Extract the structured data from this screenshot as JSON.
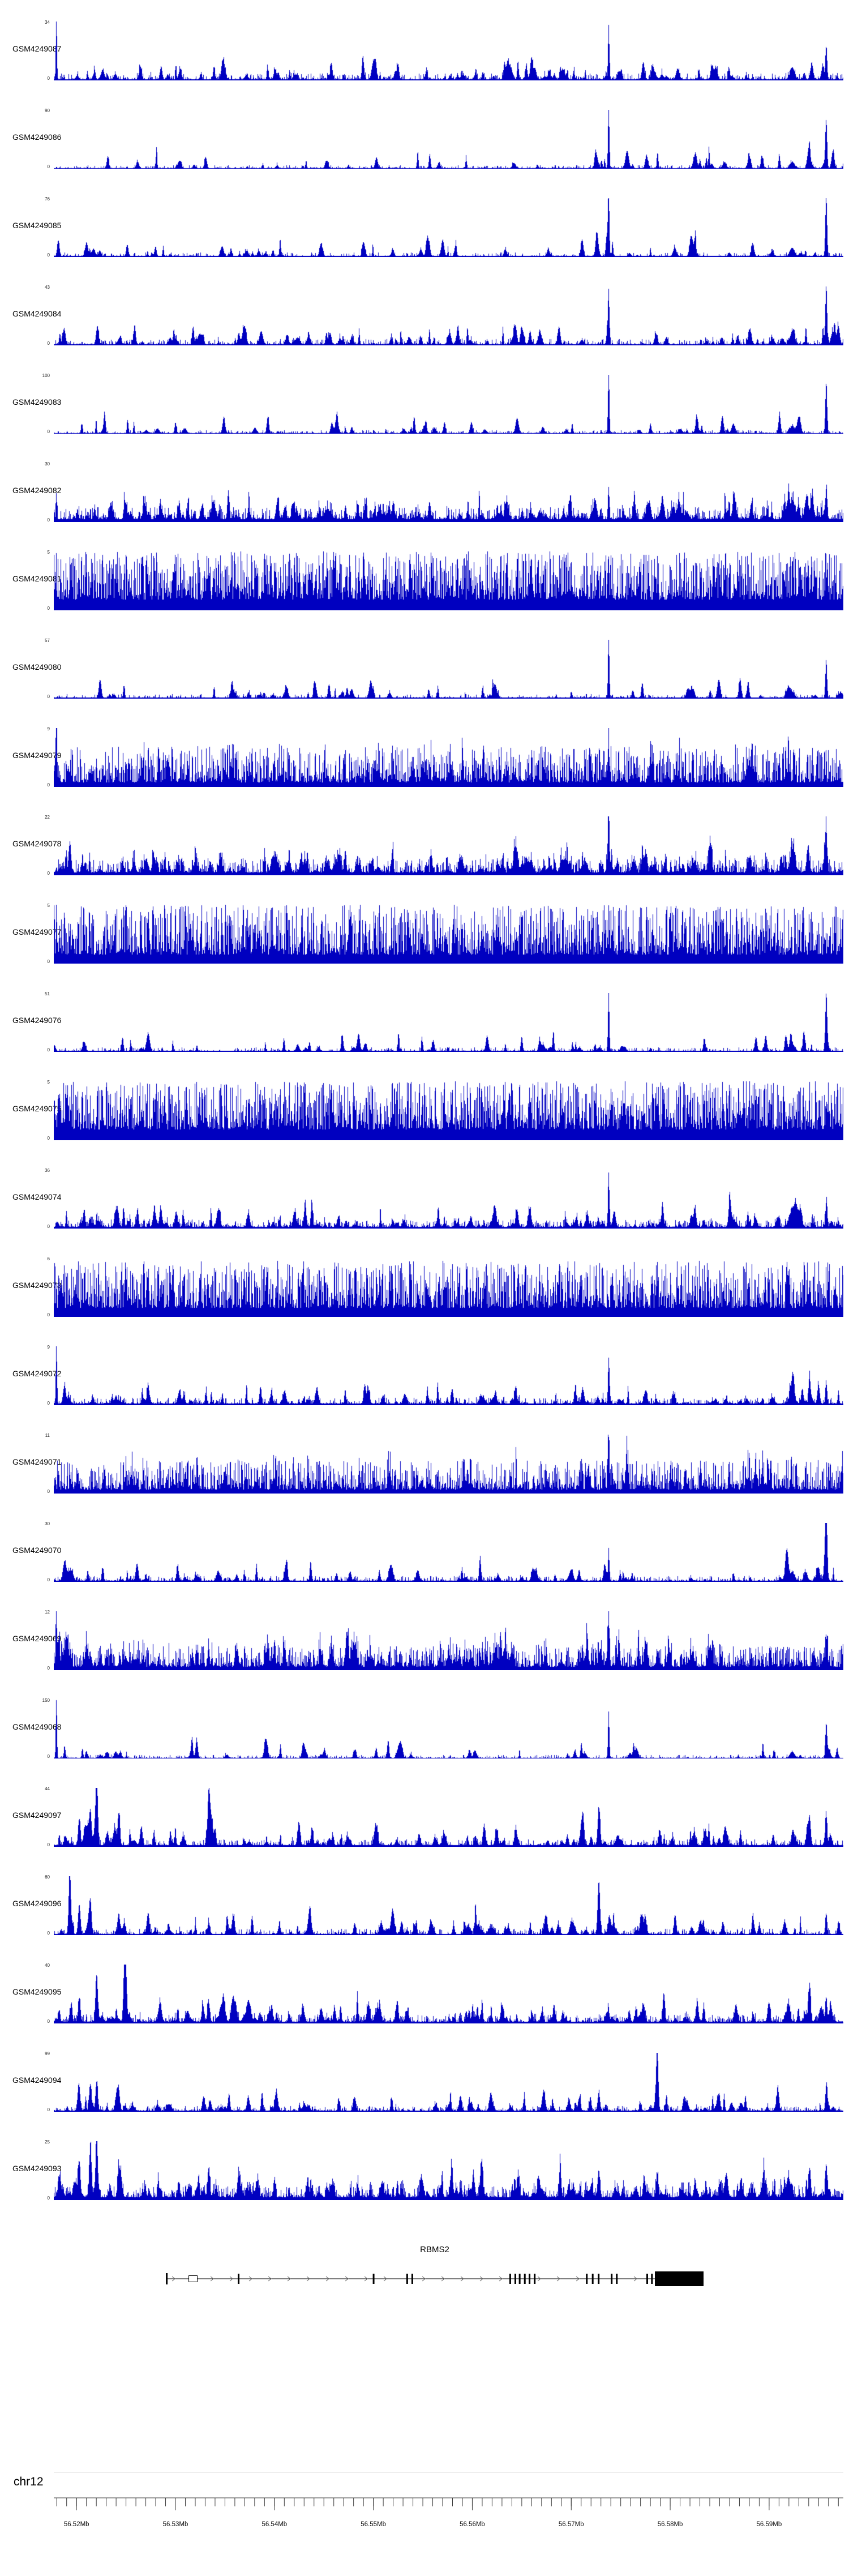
{
  "chromosome_label": "chr12",
  "colors": {
    "signal": "#0000c0",
    "gene": "#000000",
    "axis": "#3a3a3a",
    "separator": "#c9c9c9",
    "background": "#ffffff"
  },
  "chart_data": {
    "type": "area",
    "title": "",
    "description": "Stacked genome-browser coverage tracks (blue filled histograms) over chr12 with RBMS2 gene model and genomic axis",
    "chromosome": "chr12",
    "grid": false,
    "legend": "none",
    "x_axis": {
      "range_mb": [
        56.5177,
        56.5975
      ],
      "major_tick_interval_mb": 0.01,
      "minor_tick_interval_mb": 0.001,
      "tick_labels": [
        "56.52Mb",
        "56.53Mb",
        "56.54Mb",
        "56.55Mb",
        "56.56Mb",
        "56.57Mb",
        "56.58Mb",
        "56.59Mb"
      ]
    },
    "gene_track": {
      "gene_name": "RBMS2",
      "strand": "+",
      "span_frac": [
        0.142,
        0.823
      ],
      "exons": [
        {
          "x": 0.142,
          "w": 3,
          "h": 20
        },
        {
          "x": 0.171,
          "w": 15,
          "h": 11,
          "hollow": true
        },
        {
          "x": 0.233,
          "w": 3,
          "h": 18
        },
        {
          "x": 0.404,
          "w": 3,
          "h": 18
        },
        {
          "x": 0.4465,
          "w": 3,
          "h": 18
        },
        {
          "x": 0.453,
          "w": 3,
          "h": 18
        },
        {
          "x": 0.577,
          "w": 3,
          "h": 18
        },
        {
          "x": 0.5835,
          "w": 3,
          "h": 18
        },
        {
          "x": 0.589,
          "w": 3,
          "h": 18
        },
        {
          "x": 0.5955,
          "w": 3,
          "h": 18
        },
        {
          "x": 0.6015,
          "w": 3,
          "h": 18
        },
        {
          "x": 0.608,
          "w": 3,
          "h": 18
        },
        {
          "x": 0.674,
          "w": 3,
          "h": 18
        },
        {
          "x": 0.6815,
          "w": 3,
          "h": 18
        },
        {
          "x": 0.689,
          "w": 3,
          "h": 18
        },
        {
          "x": 0.7055,
          "w": 3,
          "h": 18
        },
        {
          "x": 0.712,
          "w": 3,
          "h": 18
        },
        {
          "x": 0.7505,
          "w": 3,
          "h": 18
        },
        {
          "x": 0.7565,
          "w": 3,
          "h": 18
        },
        {
          "x": 0.7613,
          "w": 86,
          "h": 26,
          "end_box": true
        }
      ]
    },
    "peaks_format": "[x_fraction_of_plot_width, height_fraction_of_ymax, gaussian_width_fraction]",
    "tracks": [
      {
        "label": "GSM4249087",
        "ymax": 34,
        "ymin": 0,
        "profile": {
          "seed": 101,
          "base": 0.02,
          "noise": 0.1,
          "spike": 5,
          "bumps": 90,
          "peaks": [
            [
              0.003,
              1.0,
              0.001
            ],
            [
              0.7025,
              0.85,
              0.0012
            ],
            [
              0.935,
              0.2,
              0.004
            ],
            [
              0.978,
              0.5,
              0.0015
            ]
          ]
        }
      },
      {
        "label": "GSM4249086",
        "ymax": 90,
        "ymin": 0,
        "profile": {
          "seed": 102,
          "base": 0.012,
          "noise": 0.05,
          "spike": 6,
          "bumps": 45,
          "peaks": [
            [
              0.7025,
              1.0,
              0.0012
            ],
            [
              0.935,
              0.1,
              0.004
            ],
            [
              0.978,
              0.8,
              0.0015
            ]
          ]
        }
      },
      {
        "label": "GSM4249085",
        "ymax": 76,
        "ymin": 0,
        "profile": {
          "seed": 103,
          "base": 0.015,
          "noise": 0.06,
          "spike": 6,
          "bumps": 55,
          "peaks": [
            [
              0.05,
              0.12,
              0.003
            ],
            [
              0.7025,
              0.95,
              0.0012
            ],
            [
              0.935,
              0.14,
              0.004
            ],
            [
              0.978,
              1.0,
              0.0015
            ]
          ]
        }
      },
      {
        "label": "GSM4249084",
        "ymax": 43,
        "ymin": 0,
        "profile": {
          "seed": 104,
          "base": 0.02,
          "noise": 0.09,
          "spike": 5,
          "bumps": 85,
          "peaks": [
            [
              0.7025,
              0.9,
              0.0012
            ],
            [
              0.935,
              0.2,
              0.004
            ],
            [
              0.978,
              1.0,
              0.0015
            ]
          ]
        }
      },
      {
        "label": "GSM4249083",
        "ymax": 100,
        "ymin": 0,
        "profile": {
          "seed": 105,
          "base": 0.012,
          "noise": 0.05,
          "spike": 6,
          "bumps": 45,
          "peaks": [
            [
              0.7025,
              1.0,
              0.0012
            ],
            [
              0.935,
              0.12,
              0.004
            ],
            [
              0.978,
              0.85,
              0.0015
            ]
          ]
        }
      },
      {
        "label": "GSM4249082",
        "ymax": 30,
        "ymin": 0,
        "profile": {
          "seed": 106,
          "base": 0.05,
          "noise": 0.2,
          "spike": 3.4,
          "bumps": 130,
          "peaks": [
            [
              0.003,
              0.4,
              0.001
            ],
            [
              0.7025,
              0.55,
              0.0012
            ],
            [
              0.935,
              0.3,
              0.004
            ],
            [
              0.978,
              0.45,
              0.0015
            ]
          ]
        }
      },
      {
        "label": "GSM4249081",
        "ymax": 5,
        "ymin": 0,
        "profile": {
          "seed": 107,
          "base": 0.18,
          "noise": 0.82,
          "spike": 1.5,
          "bumps": 0,
          "peaks": []
        }
      },
      {
        "label": "GSM4249080",
        "ymax": 57,
        "ymin": 0,
        "profile": {
          "seed": 108,
          "base": 0.015,
          "noise": 0.06,
          "spike": 6,
          "bumps": 50,
          "peaks": [
            [
              0.7025,
              1.0,
              0.0012
            ],
            [
              0.935,
              0.1,
              0.004
            ],
            [
              0.978,
              0.6,
              0.0015
            ]
          ]
        }
      },
      {
        "label": "GSM4249079",
        "ymax": 9,
        "ymin": 0,
        "profile": {
          "seed": 109,
          "base": 0.08,
          "noise": 0.6,
          "spike": 2.0,
          "bumps": 40,
          "peaks": [
            [
              0.003,
              1.0,
              0.001
            ],
            [
              0.7025,
              0.5,
              0.0015
            ]
          ]
        }
      },
      {
        "label": "GSM4249078",
        "ymax": 22,
        "ymin": 0,
        "profile": {
          "seed": 110,
          "base": 0.05,
          "noise": 0.22,
          "spike": 3.0,
          "bumps": 130,
          "peaks": [
            [
              0.02,
              0.5,
              0.002
            ],
            [
              0.7025,
              0.8,
              0.0012
            ],
            [
              0.935,
              0.35,
              0.004
            ],
            [
              0.978,
              0.55,
              0.0015
            ]
          ]
        }
      },
      {
        "label": "GSM4249077",
        "ymax": 5,
        "ymin": 0,
        "profile": {
          "seed": 111,
          "base": 0.15,
          "noise": 0.85,
          "spike": 1.6,
          "bumps": 0,
          "peaks": []
        }
      },
      {
        "label": "GSM4249076",
        "ymax": 51,
        "ymin": 0,
        "profile": {
          "seed": 112,
          "base": 0.015,
          "noise": 0.06,
          "spike": 6,
          "bumps": 50,
          "peaks": [
            [
              0.7025,
              0.95,
              0.0012
            ],
            [
              0.935,
              0.12,
              0.004
            ],
            [
              0.978,
              0.85,
              0.0015
            ]
          ]
        }
      },
      {
        "label": "GSM4249075",
        "ymax": 5,
        "ymin": 0,
        "profile": {
          "seed": 113,
          "base": 0.18,
          "noise": 0.82,
          "spike": 1.5,
          "bumps": 0,
          "peaks": []
        }
      },
      {
        "label": "GSM4249074",
        "ymax": 36,
        "ymin": 0,
        "profile": {
          "seed": 114,
          "base": 0.03,
          "noise": 0.12,
          "spike": 4.0,
          "bumps": 110,
          "peaks": [
            [
              0.7025,
              0.9,
              0.0012
            ],
            [
              0.935,
              0.3,
              0.004
            ],
            [
              0.978,
              0.4,
              0.0015
            ]
          ]
        }
      },
      {
        "label": "GSM4249073",
        "ymax": 6,
        "ymin": 0,
        "profile": {
          "seed": 115,
          "base": 0.15,
          "noise": 0.8,
          "spike": 1.7,
          "bumps": 0,
          "peaks": []
        }
      },
      {
        "label": "GSM4249072",
        "ymax": 9,
        "ymin": 0,
        "profile": {
          "seed": 116,
          "base": 0.03,
          "noise": 0.1,
          "spike": 5.0,
          "bumps": 80,
          "peaks": [
            [
              0.003,
              1.0,
              0.001
            ],
            [
              0.7025,
              0.65,
              0.0012
            ],
            [
              0.935,
              0.2,
              0.004
            ],
            [
              0.978,
              0.35,
              0.0015
            ]
          ]
        }
      },
      {
        "label": "GSM4249071",
        "ymax": 11,
        "ymin": 0,
        "profile": {
          "seed": 117,
          "base": 0.07,
          "noise": 0.5,
          "spike": 2.2,
          "bumps": 50,
          "peaks": [
            [
              0.7025,
              0.7,
              0.0015
            ]
          ]
        }
      },
      {
        "label": "GSM4249070",
        "ymax": 30,
        "ymin": 0,
        "profile": {
          "seed": 118,
          "base": 0.02,
          "noise": 0.08,
          "spike": 5.0,
          "bumps": 70,
          "peaks": [
            [
              0.7025,
              0.5,
              0.0012
            ],
            [
              0.935,
              0.15,
              0.004
            ],
            [
              0.978,
              1.0,
              0.0015
            ]
          ]
        }
      },
      {
        "label": "GSM4249069",
        "ymax": 12,
        "ymin": 0,
        "profile": {
          "seed": 119,
          "base": 0.06,
          "noise": 0.35,
          "spike": 2.6,
          "bumps": 120,
          "peaks": [
            [
              0.003,
              0.5,
              0.001
            ],
            [
              0.7025,
              0.8,
              0.0015
            ],
            [
              0.978,
              0.45,
              0.0015
            ]
          ]
        }
      },
      {
        "label": "GSM4249068",
        "ymax": 150,
        "ymin": 0,
        "profile": {
          "seed": 120,
          "base": 0.012,
          "noise": 0.05,
          "spike": 6,
          "bumps": 45,
          "peaks": [
            [
              0.003,
              1.0,
              0.001
            ],
            [
              0.7025,
              0.75,
              0.0012
            ],
            [
              0.935,
              0.1,
              0.004
            ],
            [
              0.978,
              0.55,
              0.0015
            ]
          ]
        }
      },
      {
        "label": "GSM4249097",
        "ymax": 44,
        "ymin": 0,
        "profile": {
          "seed": 121,
          "base": 0.025,
          "noise": 0.1,
          "spike": 4.5,
          "bumps": 100,
          "peaks": [
            [
              0.032,
              0.45,
              0.002
            ],
            [
              0.046,
              0.6,
              0.002
            ],
            [
              0.054,
              1.0,
              0.002
            ],
            [
              0.082,
              0.55,
              0.002
            ],
            [
              0.196,
              0.9,
              0.002
            ],
            [
              0.69,
              0.55,
              0.002
            ],
            [
              0.957,
              0.4,
              0.002
            ],
            [
              0.978,
              0.45,
              0.0015
            ]
          ]
        }
      },
      {
        "label": "GSM4249096",
        "ymax": 60,
        "ymin": 0,
        "profile": {
          "seed": 122,
          "base": 0.02,
          "noise": 0.09,
          "spike": 5.0,
          "bumps": 80,
          "peaks": [
            [
              0.02,
              1.0,
              0.0018
            ],
            [
              0.032,
              0.5,
              0.002
            ],
            [
              0.046,
              0.55,
              0.002
            ],
            [
              0.082,
              0.35,
              0.002
            ],
            [
              0.196,
              0.2,
              0.002
            ],
            [
              0.69,
              0.9,
              0.002
            ],
            [
              0.978,
              0.35,
              0.0015
            ]
          ]
        }
      },
      {
        "label": "GSM4249095",
        "ymax": 40,
        "ymin": 0,
        "profile": {
          "seed": 123,
          "base": 0.03,
          "noise": 0.12,
          "spike": 4.0,
          "bumps": 120,
          "peaks": [
            [
              0.032,
              0.4,
              0.002
            ],
            [
              0.054,
              0.8,
              0.002
            ],
            [
              0.09,
              1.0,
              0.0022
            ],
            [
              0.196,
              0.3,
              0.002
            ],
            [
              0.93,
              0.3,
              0.003
            ],
            [
              0.957,
              0.35,
              0.002
            ],
            [
              0.978,
              0.4,
              0.0015
            ]
          ]
        }
      },
      {
        "label": "GSM4249094",
        "ymax": 99,
        "ymin": 0,
        "profile": {
          "seed": 124,
          "base": 0.02,
          "noise": 0.08,
          "spike": 5.0,
          "bumps": 80,
          "peaks": [
            [
              0.032,
              0.3,
              0.002
            ],
            [
              0.046,
              0.45,
              0.002
            ],
            [
              0.054,
              0.5,
              0.002
            ],
            [
              0.082,
              0.3,
              0.002
            ],
            [
              0.69,
              0.3,
              0.002
            ],
            [
              0.764,
              1.0,
              0.0018
            ],
            [
              0.978,
              0.35,
              0.0015
            ]
          ]
        }
      },
      {
        "label": "GSM4249093",
        "ymax": 25,
        "ymin": 0,
        "profile": {
          "seed": 125,
          "base": 0.05,
          "noise": 0.18,
          "spike": 3.0,
          "bumps": 140,
          "peaks": [
            [
              0.032,
              0.6,
              0.002
            ],
            [
              0.046,
              0.8,
              0.002
            ],
            [
              0.054,
              1.0,
              0.002
            ],
            [
              0.082,
              0.5,
              0.002
            ],
            [
              0.196,
              0.5,
              0.002
            ],
            [
              0.69,
              0.45,
              0.002
            ],
            [
              0.764,
              0.4,
              0.002
            ],
            [
              0.93,
              0.35,
              0.003
            ],
            [
              0.957,
              0.5,
              0.002
            ],
            [
              0.978,
              0.55,
              0.0015
            ]
          ]
        }
      }
    ]
  }
}
